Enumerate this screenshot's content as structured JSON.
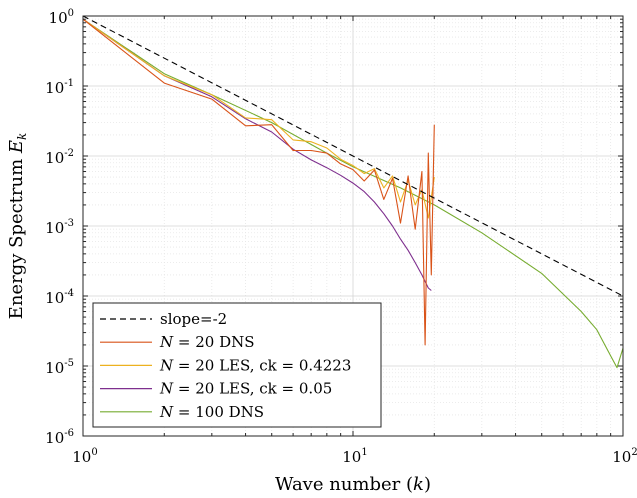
{
  "chart_data": {
    "type": "line",
    "xscale": "log",
    "yscale": "log",
    "xlim": [
      1,
      100
    ],
    "ylim": [
      1e-06,
      1
    ],
    "xlabel": "Wave number (k)",
    "ylabel": "Energy Spectrum E_k",
    "grid": true,
    "legend_position": "bottom-left",
    "x_ticks": [
      {
        "base": "10",
        "exp": "0"
      },
      {
        "base": "10",
        "exp": "1"
      },
      {
        "base": "10",
        "exp": "2"
      }
    ],
    "y_ticks": [
      {
        "base": "10",
        "exp": "-6"
      },
      {
        "base": "10",
        "exp": "-5"
      },
      {
        "base": "10",
        "exp": "-4"
      },
      {
        "base": "10",
        "exp": "-3"
      },
      {
        "base": "10",
        "exp": "-2"
      },
      {
        "base": "10",
        "exp": "-1"
      },
      {
        "base": "10",
        "exp": "0"
      }
    ],
    "series": [
      {
        "name": "slope=-2",
        "color": "#000000",
        "dashed": true,
        "x": [
          1,
          100
        ],
        "y": [
          1,
          0.0001
        ]
      },
      {
        "name": "N = 20 DNS",
        "color": "#d95319",
        "dashed": false,
        "x": [
          1,
          2,
          3,
          4,
          5,
          6,
          7,
          8,
          9,
          10,
          11,
          12,
          13,
          14,
          15,
          16,
          17,
          18,
          18.5,
          19,
          19.5,
          20
        ],
        "y": [
          0.9,
          0.11,
          0.065,
          0.027,
          0.028,
          0.012,
          0.012,
          0.011,
          0.0077,
          0.0064,
          0.0044,
          0.0063,
          0.0024,
          0.0048,
          0.0011,
          0.0052,
          0.0009,
          0.006,
          2e-05,
          0.011,
          0.0002,
          0.028
        ]
      },
      {
        "name": "N = 20 LES, ck = 0.4223",
        "color": "#edb120",
        "dashed": false,
        "x": [
          1,
          2,
          3,
          4,
          5,
          6,
          7,
          8,
          9,
          10,
          11,
          12,
          13,
          14,
          15,
          16,
          17,
          18,
          19,
          20
        ],
        "y": [
          0.9,
          0.14,
          0.075,
          0.035,
          0.033,
          0.017,
          0.016,
          0.013,
          0.009,
          0.0073,
          0.0056,
          0.0066,
          0.0035,
          0.0052,
          0.0022,
          0.0045,
          0.002,
          0.0033,
          0.0013,
          0.005
        ]
      },
      {
        "name": "N = 20 LES, ck = 0.05",
        "color": "#7e2f8e",
        "dashed": false,
        "x": [
          1,
          2,
          3,
          4,
          5,
          6,
          7,
          8,
          9,
          10,
          11,
          12,
          13,
          14,
          15,
          16,
          17,
          18,
          19,
          19.5
        ],
        "y": [
          0.9,
          0.14,
          0.07,
          0.034,
          0.022,
          0.0125,
          0.0088,
          0.0068,
          0.0053,
          0.0041,
          0.0031,
          0.0022,
          0.0015,
          0.001,
          0.00065,
          0.00045,
          0.0003,
          0.0002,
          0.00013,
          0.00012
        ]
      },
      {
        "name": "N = 100 DNS",
        "color": "#77ac30",
        "dashed": false,
        "x": [
          1,
          2,
          3,
          5,
          8,
          10,
          15,
          20,
          30,
          50,
          70,
          80,
          90,
          95,
          100
        ],
        "y": [
          0.9,
          0.15,
          0.075,
          0.03,
          0.011,
          0.007,
          0.0035,
          0.002,
          0.0008,
          0.00021,
          6e-05,
          3.3e-05,
          1.4e-05,
          9.5e-06,
          1.8e-05
        ]
      }
    ],
    "legend": [
      {
        "math": "",
        "text": "slope=-2"
      },
      {
        "math": "N = 20",
        "text": " DNS"
      },
      {
        "math": "N = 20",
        "text": " LES, ck = 0.4223"
      },
      {
        "math": "N = 20",
        "text": " LES, ck = 0.05"
      },
      {
        "math": "N = 100",
        "text": " DNS"
      }
    ]
  }
}
